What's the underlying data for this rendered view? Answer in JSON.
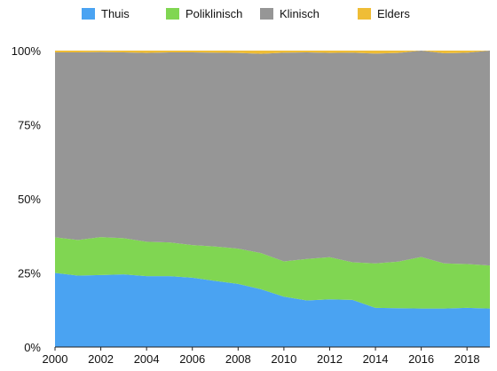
{
  "chart_data": {
    "type": "area",
    "stacked": "percent",
    "title": "",
    "xlabel": "",
    "ylabel": "",
    "x": [
      2000,
      2001,
      2002,
      2003,
      2004,
      2005,
      2006,
      2007,
      2008,
      2009,
      2010,
      2011,
      2012,
      2013,
      2014,
      2015,
      2016,
      2017,
      2018,
      2019
    ],
    "x_ticks": [
      "2000",
      "2002",
      "2004",
      "2006",
      "2008",
      "2010",
      "2012",
      "2014",
      "2016",
      "2018"
    ],
    "y_ticks": [
      "0%",
      "25%",
      "50%",
      "75%",
      "100%"
    ],
    "ylim": [
      0,
      100
    ],
    "legend_position": "top",
    "grid": false,
    "series": [
      {
        "name": "Thuis",
        "color": "#4aa3f2",
        "values": [
          25.0,
          24.1,
          24.3,
          24.5,
          23.9,
          23.9,
          23.4,
          22.3,
          21.3,
          19.5,
          17.0,
          15.7,
          16.1,
          15.9,
          13.2,
          13.1,
          13.0,
          13.0,
          13.2,
          13.0
        ]
      },
      {
        "name": "Poliklinisch",
        "color": "#80d652",
        "values": [
          12.0,
          12.0,
          12.8,
          12.2,
          11.6,
          11.4,
          11.0,
          11.6,
          11.9,
          12.2,
          11.9,
          14.0,
          14.2,
          12.7,
          15.0,
          15.7,
          17.4,
          15.2,
          14.8,
          14.5
        ]
      },
      {
        "name": "Klinisch",
        "color": "#969696",
        "values": [
          62.4,
          63.3,
          62.4,
          62.7,
          63.7,
          64.1,
          65.0,
          65.4,
          66.0,
          67.2,
          70.4,
          69.7,
          68.9,
          70.7,
          70.8,
          70.4,
          69.6,
          70.9,
          71.3,
          72.5
        ]
      },
      {
        "name": "Elders",
        "color": "#efbd36",
        "values": [
          0.6,
          0.6,
          0.5,
          0.6,
          0.8,
          0.6,
          0.6,
          0.7,
          0.8,
          1.1,
          0.7,
          0.6,
          0.8,
          0.7,
          1.0,
          0.8,
          0.0,
          0.9,
          0.7,
          0.0
        ]
      }
    ]
  }
}
